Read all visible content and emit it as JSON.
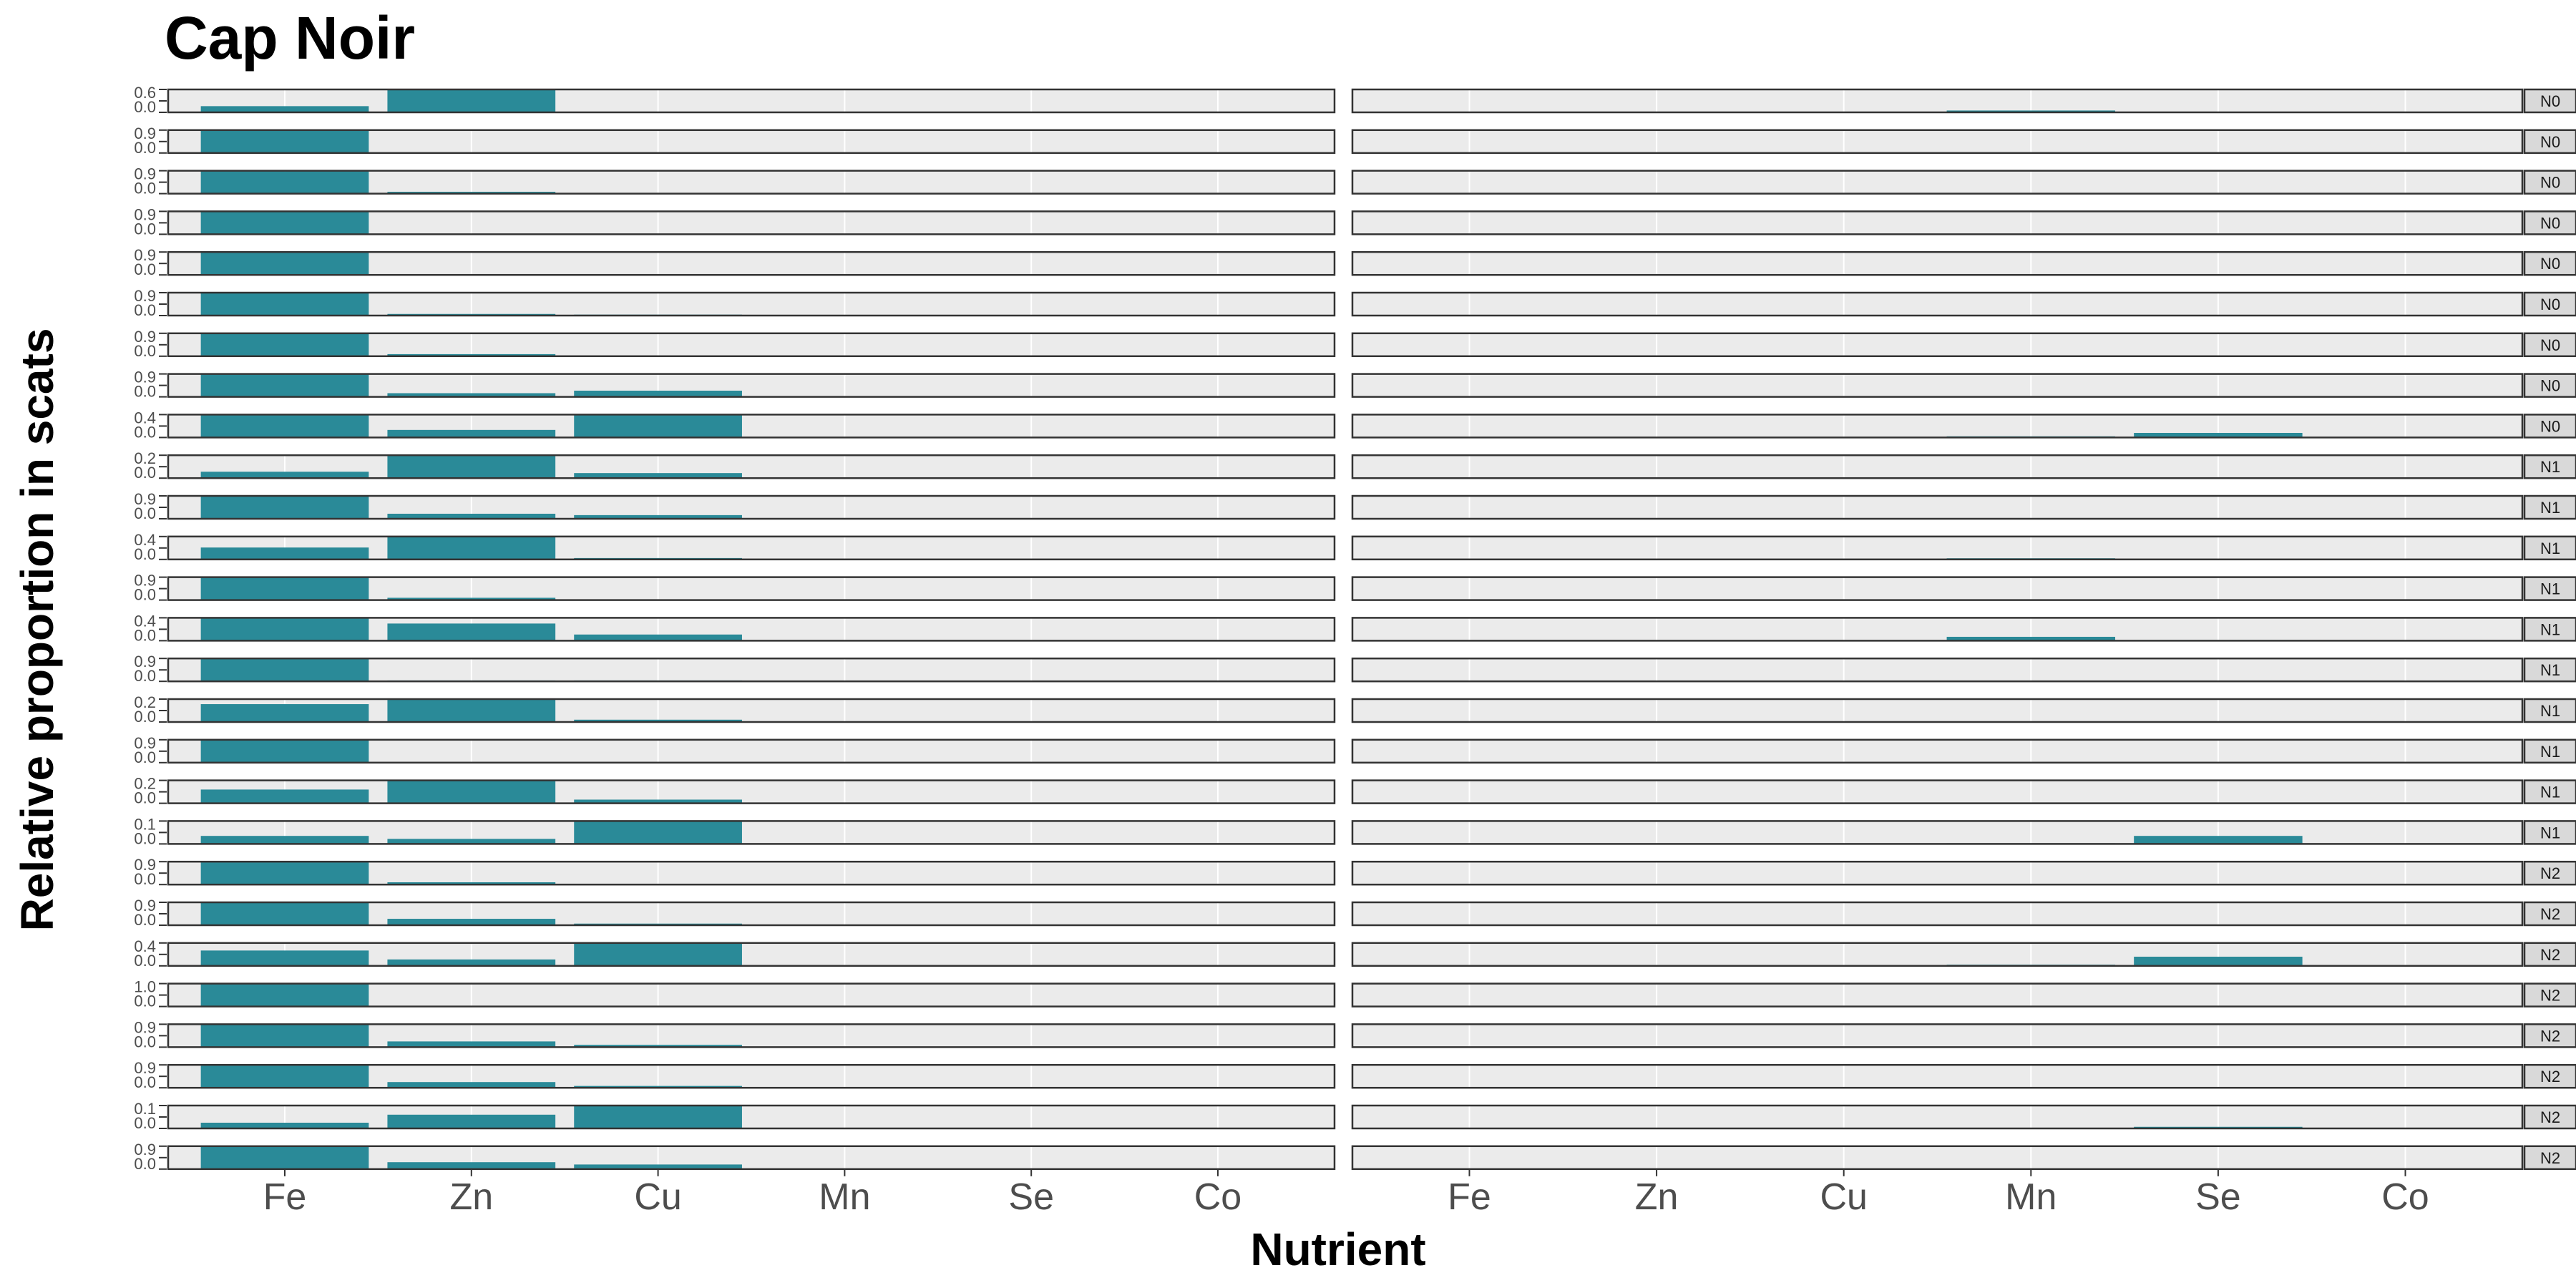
{
  "chart_data": {
    "type": "bar",
    "title": "Cap Noir",
    "xlabel": "Nutrient",
    "ylabel": "Relative proportion in scats",
    "categories": [
      "Fe",
      "Zn",
      "Cu",
      "Mn",
      "Se",
      "Co"
    ],
    "row_max": [
      0.6,
      0.9,
      0.9,
      0.9,
      0.9,
      0.9,
      0.9,
      0.9,
      0.4,
      0.2,
      0.9,
      0.4,
      0.9,
      0.4,
      0.9,
      0.2,
      0.9,
      0.2,
      0.1,
      0.9,
      0.9,
      0.4,
      1.0,
      0.9,
      0.9,
      0.1,
      0.9
    ],
    "left_panel_rows": [
      [
        0.27,
        0.97,
        0,
        0,
        0,
        0
      ],
      [
        0.97,
        0.02,
        0,
        0,
        0,
        0
      ],
      [
        0.97,
        0.08,
        0,
        0,
        0,
        0
      ],
      [
        0.97,
        0.01,
        0,
        0,
        0,
        0
      ],
      [
        0.97,
        0.03,
        0,
        0,
        0,
        0
      ],
      [
        0.97,
        0.07,
        0.04,
        0,
        0,
        0
      ],
      [
        0.97,
        0.09,
        0.02,
        0,
        0,
        0
      ],
      [
        0.97,
        0.16,
        0.27,
        0,
        0,
        0
      ],
      [
        0.97,
        0.33,
        0.97,
        0,
        0,
        0
      ],
      [
        0.28,
        0.97,
        0.22,
        0,
        0,
        0
      ],
      [
        0.97,
        0.22,
        0.16,
        0,
        0,
        0
      ],
      [
        0.52,
        0.97,
        0.06,
        0,
        0,
        0
      ],
      [
        0.97,
        0.1,
        0.02,
        0,
        0,
        0
      ],
      [
        0.97,
        0.75,
        0.27,
        0,
        0,
        0
      ],
      [
        0.97,
        0.04,
        0.04,
        0,
        0,
        0
      ],
      [
        0.78,
        0.97,
        0.1,
        0,
        0,
        0
      ],
      [
        0.97,
        0.02,
        0,
        0,
        0,
        0
      ],
      [
        0.6,
        0.97,
        0.16,
        0,
        0,
        0
      ],
      [
        0.35,
        0.22,
        0.97,
        0,
        0,
        0
      ],
      [
        0.97,
        0.1,
        0.03,
        0,
        0,
        0
      ],
      [
        0.97,
        0.28,
        0.07,
        0,
        0,
        0
      ],
      [
        0.67,
        0.28,
        0.97,
        0,
        0,
        0
      ],
      [
        0.97,
        0.01,
        0,
        0,
        0,
        0
      ],
      [
        0.97,
        0.25,
        0.1,
        0,
        0,
        0
      ],
      [
        0.97,
        0.25,
        0.08,
        0,
        0,
        0
      ],
      [
        0.25,
        0.6,
        0.97,
        0,
        0,
        0
      ],
      [
        0.97,
        0.3,
        0.2,
        0,
        0,
        0
      ]
    ],
    "right_panel_rows": [
      [
        0,
        0,
        0,
        0.08,
        0,
        0
      ],
      [
        0,
        0,
        0,
        0,
        0,
        0
      ],
      [
        0,
        0,
        0,
        0,
        0,
        0
      ],
      [
        0,
        0,
        0,
        0,
        0,
        0
      ],
      [
        0,
        0,
        0,
        0,
        0,
        0
      ],
      [
        0,
        0,
        0,
        0,
        0,
        0
      ],
      [
        0,
        0,
        0,
        0,
        0,
        0
      ],
      [
        0,
        0,
        0,
        0,
        0,
        0
      ],
      [
        0,
        0,
        0,
        0.05,
        0.2,
        0
      ],
      [
        0,
        0,
        0,
        0,
        0,
        0
      ],
      [
        0,
        0,
        0,
        0,
        0,
        0
      ],
      [
        0,
        0,
        0,
        0.05,
        0,
        0
      ],
      [
        0,
        0,
        0,
        0,
        0,
        0
      ],
      [
        0,
        0,
        0,
        0.17,
        0.03,
        0
      ],
      [
        0,
        0,
        0,
        0.01,
        0.01,
        0
      ],
      [
        0,
        0,
        0,
        0.03,
        0.01,
        0
      ],
      [
        0,
        0,
        0,
        0.02,
        0,
        0
      ],
      [
        0,
        0,
        0,
        0.02,
        0.01,
        0
      ],
      [
        0,
        0,
        0,
        0.03,
        0.35,
        0
      ],
      [
        0,
        0,
        0,
        0,
        0,
        0
      ],
      [
        0,
        0,
        0,
        0,
        0,
        0
      ],
      [
        0,
        0,
        0,
        0.05,
        0.4,
        0
      ],
      [
        0,
        0,
        0,
        0,
        0,
        0
      ],
      [
        0,
        0,
        0,
        0,
        0,
        0
      ],
      [
        0,
        0,
        0,
        0,
        0,
        0
      ],
      [
        0,
        0,
        0,
        0,
        0.07,
        0
      ],
      [
        0,
        0,
        0,
        0,
        0,
        0
      ]
    ],
    "strip_labels": [
      "N0",
      "N0",
      "N0",
      "N0",
      "N0",
      "N0",
      "N0",
      "N0",
      "N0",
      "N1",
      "N1",
      "N1",
      "N1",
      "N1",
      "N1",
      "N1",
      "N1",
      "N1",
      "N1",
      "N2",
      "N2",
      "N2",
      "N2",
      "N2",
      "N2",
      "N2",
      "N2"
    ],
    "grid": true,
    "legend": "none"
  },
  "colors": {
    "bar": "#2a8a98",
    "panel_bg": "#ebebeb",
    "panel_border": "#333333",
    "strip_bg": "#d9d9d9",
    "grid": "#ffffff"
  }
}
